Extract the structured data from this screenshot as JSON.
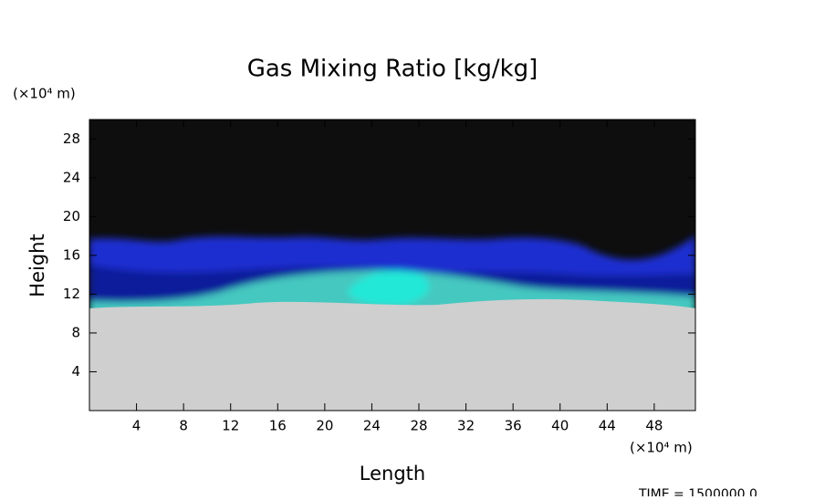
{
  "chart_data": {
    "type": "field",
    "title": "Gas Mixing Ratio [kg/kg]",
    "x_label": "Length",
    "y_label": "Height",
    "x_unit": "(×10⁴ m)",
    "y_unit": "(×10⁴ m)",
    "time_label": "TIME =  1500000.0",
    "xlim": [
      0,
      51.5
    ],
    "xticks": [
      4,
      8,
      12,
      16,
      20,
      24,
      28,
      32,
      36,
      40,
      44,
      48
    ],
    "ylim": [
      0,
      30
    ],
    "yticks": [
      4,
      8,
      12,
      16,
      20,
      24,
      28
    ]
  }
}
